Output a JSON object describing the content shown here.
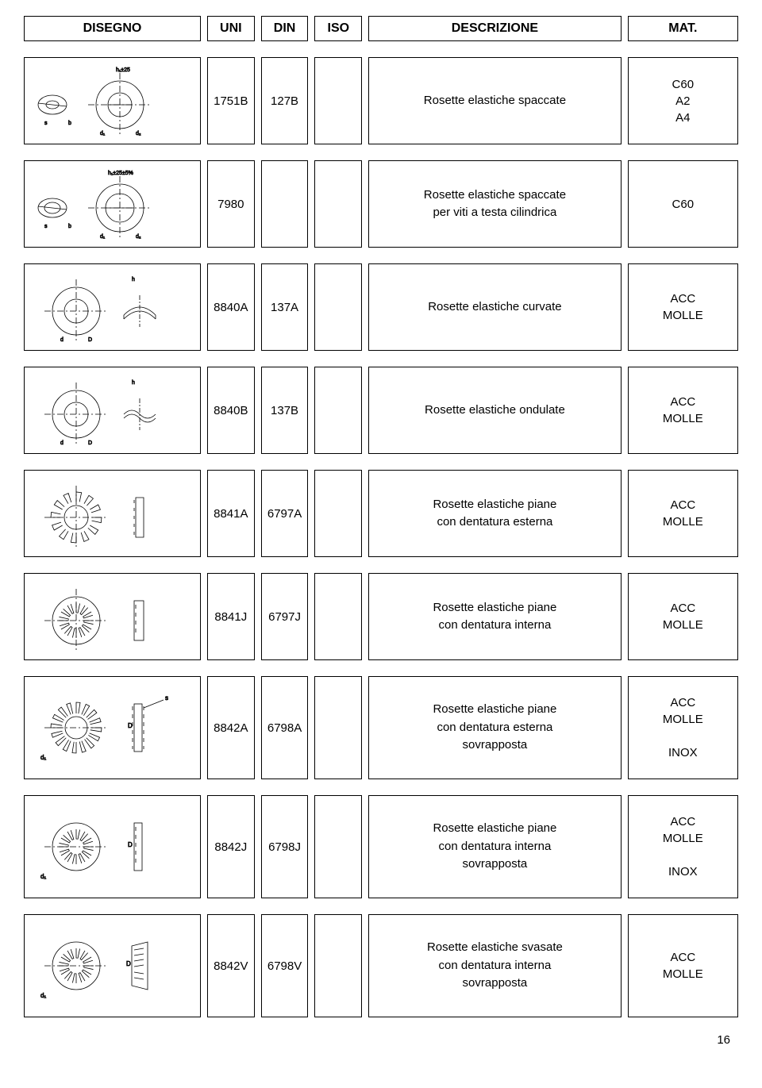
{
  "header": {
    "disegno": "DISEGNO",
    "uni": "UNI",
    "din": "DIN",
    "iso": "ISO",
    "descrizione": "DESCRIZIONE",
    "mat": "MAT."
  },
  "rows": [
    {
      "uni": "1751B",
      "din": "127B",
      "iso": "",
      "desc": "Rosette elastiche spaccate",
      "mat": [
        "C60",
        "A2",
        "A4"
      ]
    },
    {
      "uni": "7980",
      "din": "",
      "iso": "",
      "desc": "Rosette elastiche spaccate\nper viti a testa cilindrica",
      "mat": [
        "C60"
      ]
    },
    {
      "uni": "8840A",
      "din": "137A",
      "iso": "",
      "desc": "Rosette elastiche curvate",
      "mat": [
        "ACC",
        "MOLLE"
      ]
    },
    {
      "uni": "8840B",
      "din": "137B",
      "iso": "",
      "desc": "Rosette elastiche ondulate",
      "mat": [
        "ACC",
        "MOLLE"
      ]
    },
    {
      "uni": "8841A",
      "din": "6797A",
      "iso": "",
      "desc": "Rosette elastiche piane\ncon dentatura esterna",
      "mat": [
        "ACC",
        "MOLLE"
      ]
    },
    {
      "uni": "8841J",
      "din": "6797J",
      "iso": "",
      "desc": "Rosette elastiche piane\ncon dentatura interna",
      "mat": [
        "ACC",
        "MOLLE"
      ]
    },
    {
      "uni": "8842A",
      "din": "6798A",
      "iso": "",
      "desc": "Rosette elastiche piane\ncon dentatura esterna\nsovrapposta",
      "mat": [
        "ACC",
        "MOLLE",
        "INOX"
      ]
    },
    {
      "uni": "8842J",
      "din": "6798J",
      "iso": "",
      "desc": "Rosette elastiche piane\ncon dentatura interna\nsovrapposta",
      "mat": [
        "ACC",
        "MOLLE",
        "INOX"
      ]
    },
    {
      "uni": "8842V",
      "din": "6798V",
      "iso": "",
      "desc": "Rosette elastiche svasate\ncon dentatura interna\nsovrapposta",
      "mat": [
        "ACC",
        "MOLLE"
      ]
    }
  ],
  "page_number": "16"
}
